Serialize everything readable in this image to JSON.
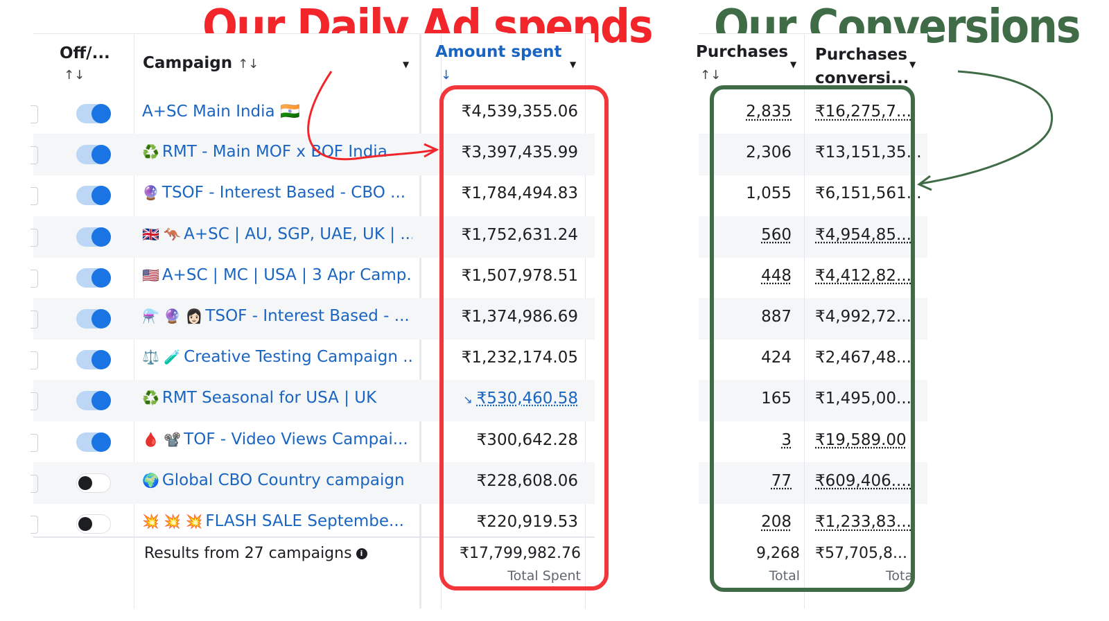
{
  "headlines": {
    "left": "Our Daily Ad spends",
    "right": "Our Conversions"
  },
  "columns": {
    "toggle": "Off/...",
    "campaign": "Campaign",
    "amount_spent": "Amount spent",
    "purchases": "Purchases",
    "purchases_conversion": "Purchases conversi..."
  },
  "sort_glyph": "↑↓",
  "sort_down_glyph": "↓",
  "rows": [
    {
      "on": true,
      "emoji": "",
      "campaign": "A+SC Main India 🇮🇳",
      "spent": "₹4,539,355.06",
      "purchases": "2,835",
      "conv": "₹16,275,7..."
    },
    {
      "on": true,
      "emoji": "♻️",
      "campaign": "RMT - Main MOF x BOF India",
      "spent": "₹3,397,435.99",
      "purchases": "2,306",
      "conv": "₹13,151,35..."
    },
    {
      "on": true,
      "emoji": "🔮",
      "campaign": "TSOF - Interest Based - CBO ...",
      "spent": "₹1,784,494.83",
      "purchases": "1,055",
      "conv": "₹6,151,561..."
    },
    {
      "on": true,
      "emoji": "🇬🇧 🦘",
      "campaign": "A+SC | AU, SGP, UAE, UK | ...",
      "spent": "₹1,752,631.24",
      "purchases": "560",
      "conv": "₹4,954,85..."
    },
    {
      "on": true,
      "emoji": "🇺🇸",
      "campaign": "A+SC | MC | USA | 3 Apr Camp...",
      "spent": "₹1,507,978.51",
      "purchases": "448",
      "conv": "₹4,412,82..."
    },
    {
      "on": true,
      "emoji": "⚗️ 🔮 👩🏻",
      "campaign": "TSOF - Interest Based - ...",
      "spent": "₹1,374,986.69",
      "purchases": "887",
      "conv": "₹4,992,72..."
    },
    {
      "on": true,
      "emoji": "⚖️ 🧪",
      "campaign": "Creative Testing Campaign ...",
      "spent": "₹1,232,174.05",
      "purchases": "424",
      "conv": "₹2,467,48..."
    },
    {
      "on": true,
      "emoji": "♻️",
      "campaign": "RMT Seasonal for USA | UK",
      "spent": "₹530,460.58",
      "purchases": "165",
      "conv": "₹1,495,00..."
    },
    {
      "on": true,
      "emoji": "🩸 📽️",
      "campaign": "TOF - Video Views Campai...",
      "spent": "₹300,642.28",
      "purchases": "3",
      "conv": "₹19,589.00"
    },
    {
      "on": false,
      "emoji": "🌍",
      "campaign": "Global CBO Country campaign",
      "spent": "₹228,608.06",
      "purchases": "77",
      "conv": "₹609,406...."
    },
    {
      "on": false,
      "emoji": "💥 💥 💥",
      "campaign": "FLASH SALE Septembe...",
      "spent": "₹220,919.53",
      "purchases": "208",
      "conv": "₹1,233,83..."
    }
  ],
  "footer": {
    "results": "Results from 27 campaigns",
    "total_spent": "₹17,799,982.76",
    "total_spent_label": "Total Spent",
    "total_purchases": "9,268",
    "total_purchases_label": "Total",
    "total_conv": "₹57,705,8...",
    "total_conv_label": "Tota"
  },
  "colors": {
    "red": "#f2262a",
    "green": "#3f6b46",
    "link": "#1a65c2",
    "toggle_on": "#1b74e4"
  }
}
